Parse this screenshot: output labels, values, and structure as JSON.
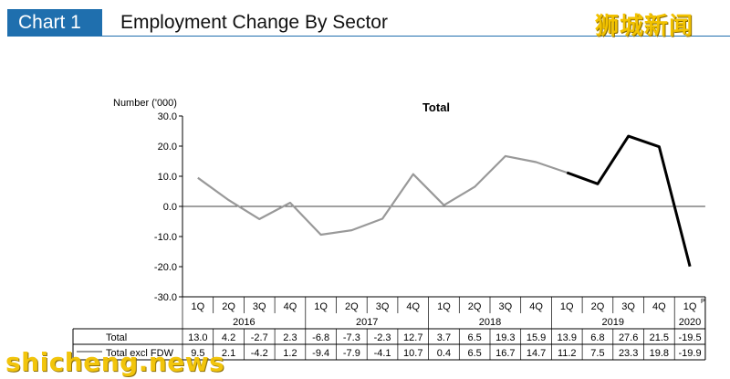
{
  "header": {
    "chart_label": "Chart 1",
    "title": "Employment Change By Sector"
  },
  "brand": {
    "logo_text": "狮城新闻",
    "watermark_text": "shicheng.news",
    "accent_color": "#1f6fae",
    "logo_color": "#f2c200"
  },
  "chart_data": {
    "type": "line",
    "title": "Total",
    "ylabel": "Number ('000)",
    "xlabel": "",
    "ylim": [
      -30,
      30
    ],
    "yticks": [
      "30.0",
      "20.0",
      "10.0",
      "0.0",
      "-10.0",
      "-20.0",
      "-30.0"
    ],
    "grid": false,
    "legend": "table-rows",
    "categories": [
      "1Q",
      "2Q",
      "3Q",
      "4Q",
      "1Q",
      "2Q",
      "3Q",
      "4Q",
      "1Q",
      "2Q",
      "3Q",
      "4Q",
      "1Q",
      "2Q",
      "3Q",
      "4Q",
      "1Q"
    ],
    "category_superscripts": [
      "",
      "",
      "",
      "",
      "",
      "",
      "",
      "",
      "",
      "",
      "",
      "",
      "",
      "",
      "",
      "",
      "P"
    ],
    "years": [
      {
        "label": "2016",
        "span": 4
      },
      {
        "label": "2017",
        "span": 4
      },
      {
        "label": "2018",
        "span": 4
      },
      {
        "label": "2019",
        "span": 4
      },
      {
        "label": "2020",
        "span": 1
      }
    ],
    "series": [
      {
        "name": "Total",
        "color": "#000000",
        "values": [
          13.0,
          4.2,
          -2.7,
          2.3,
          -6.8,
          -7.3,
          -2.3,
          12.7,
          3.7,
          6.5,
          19.3,
          15.9,
          13.9,
          6.8,
          27.6,
          21.5,
          -19.5
        ],
        "labels": [
          "13.0",
          "4.2",
          "-2.7",
          "2.3",
          "-6.8",
          "-7.3",
          "-2.3",
          "12.7",
          "3.7",
          "6.5",
          "19.3",
          "15.9",
          "13.9",
          "6.8",
          "27.6",
          "21.5",
          "-19.5"
        ]
      },
      {
        "name": "Total excl FDW",
        "color": "#999999",
        "values": [
          9.5,
          2.1,
          -4.2,
          1.2,
          -9.4,
          -7.9,
          -4.1,
          10.7,
          0.4,
          6.5,
          16.7,
          14.7,
          11.2,
          7.5,
          23.3,
          19.8,
          -19.9
        ],
        "labels": [
          "9.5",
          "2.1",
          "-4.2",
          "1.2",
          "-9.4",
          "-7.9",
          "-4.1",
          "10.7",
          "0.4",
          "6.5",
          "16.7",
          "14.7",
          "11.2",
          "7.5",
          "23.3",
          "19.8",
          "-19.9"
        ]
      }
    ]
  }
}
